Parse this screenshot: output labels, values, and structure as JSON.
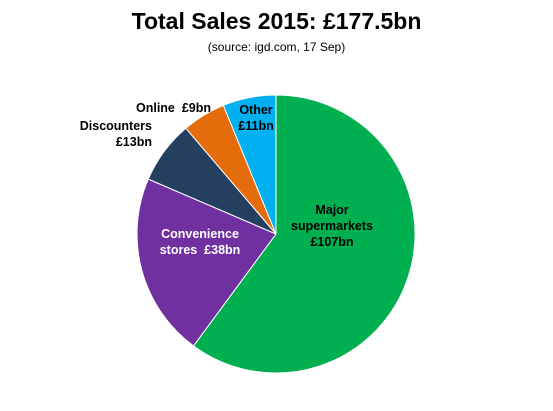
{
  "chart_data": {
    "type": "pie",
    "title": "Total Sales 2015: £177.5bn",
    "subtitle": "(source: igd.com, 17 Sep)",
    "slices": [
      {
        "label_lines": [
          "Major",
          "supermarkets",
          "£107bn"
        ],
        "value": 107,
        "color": "#00b050",
        "text_color": "#000000"
      },
      {
        "label_lines": [
          "Convenience",
          "stores  £38bn"
        ],
        "value": 38,
        "color": "#7030a0",
        "text_color": "#ffffff"
      },
      {
        "label_lines": [
          "Discounters",
          "£13bn"
        ],
        "value": 13,
        "color": "#243f60",
        "text_color": "#000000"
      },
      {
        "label_lines": [
          "Online  £9bn"
        ],
        "value": 9,
        "color": "#e46c0a",
        "text_color": "#000000"
      },
      {
        "label_lines": [
          "Other",
          "£11bn"
        ],
        "value": 11,
        "color": "#00b0f0",
        "text_color": "#000000"
      }
    ]
  }
}
